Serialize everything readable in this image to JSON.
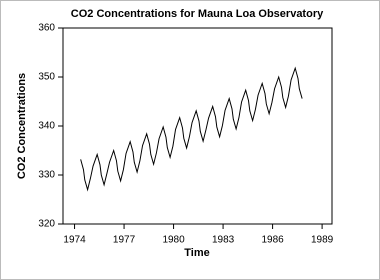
{
  "chart_data": {
    "type": "line",
    "title": "CO2 Concentrations for Mauna Loa Observatory",
    "x_label": "Time",
    "y_label": "CO2 Concentrations",
    "x": [
      1974.37,
      1974.54,
      1974.62,
      1974.79,
      1974.96,
      1975.12,
      1975.37,
      1975.54,
      1975.62,
      1975.79,
      1975.96,
      1976.12,
      1976.37,
      1976.54,
      1976.62,
      1976.79,
      1976.96,
      1977.12,
      1977.37,
      1977.54,
      1977.62,
      1977.79,
      1977.96,
      1978.12,
      1978.37,
      1978.54,
      1978.62,
      1978.79,
      1978.96,
      1979.12,
      1979.37,
      1979.54,
      1979.62,
      1979.79,
      1979.96,
      1980.12,
      1980.37,
      1980.54,
      1980.62,
      1980.79,
      1980.96,
      1981.12,
      1981.37,
      1981.54,
      1981.62,
      1981.79,
      1981.96,
      1982.12,
      1982.37,
      1982.54,
      1982.62,
      1982.79,
      1982.96,
      1983.12,
      1983.37,
      1983.54,
      1983.62,
      1983.79,
      1983.96,
      1984.12,
      1984.37,
      1984.54,
      1984.62,
      1984.79,
      1984.96,
      1985.12,
      1985.37,
      1985.54,
      1985.62,
      1985.79,
      1985.96,
      1986.12,
      1986.37,
      1986.54,
      1986.62,
      1986.79,
      1986.96,
      1987.12,
      1987.37,
      1987.54,
      1987.62,
      1987.79
    ],
    "series": [
      {
        "color": "#000000",
        "values": [
          333.2,
          331.1,
          329.0,
          327.0,
          329.3,
          331.8,
          334.2,
          332.1,
          330.0,
          328.0,
          330.3,
          332.6,
          335.0,
          332.9,
          330.8,
          328.8,
          331.1,
          334.4,
          336.8,
          334.7,
          332.6,
          330.6,
          332.9,
          336.0,
          338.4,
          336.3,
          334.2,
          332.2,
          334.5,
          337.4,
          339.8,
          337.7,
          335.6,
          333.6,
          335.9,
          339.3,
          341.7,
          339.6,
          337.5,
          335.5,
          337.8,
          340.7,
          343.1,
          341.0,
          338.9,
          336.9,
          339.2,
          341.6,
          344.0,
          341.9,
          339.8,
          337.8,
          340.1,
          343.2,
          345.6,
          343.5,
          341.4,
          339.4,
          341.7,
          344.9,
          347.3,
          345.2,
          343.1,
          341.1,
          343.4,
          346.3,
          348.7,
          346.6,
          344.5,
          342.5,
          344.8,
          347.6,
          350.0,
          347.9,
          345.8,
          343.8,
          346.1,
          349.4,
          351.8,
          349.7,
          347.6,
          345.6
        ]
      }
    ],
    "xlim": [
      1973.3,
      1989.6
    ],
    "xticks": [
      1974,
      1977,
      1980,
      1983,
      1986,
      1989
    ],
    "ylim": [
      320,
      360
    ],
    "yticks": [
      320,
      330,
      340,
      350,
      360
    ]
  }
}
